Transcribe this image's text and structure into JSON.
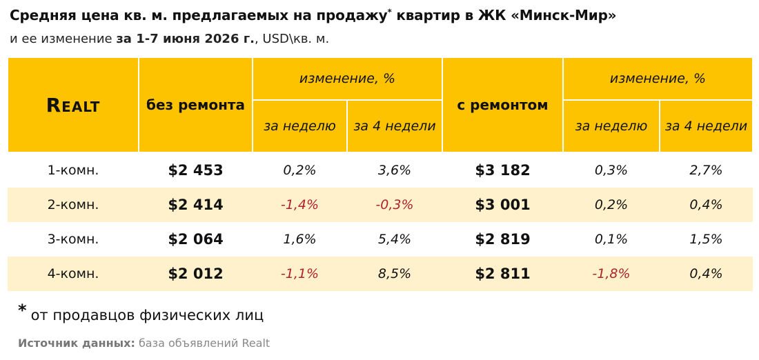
{
  "title": {
    "text": "Средняя цена кв. м. предлагаемых на продажу",
    "star": "*",
    "text2": "квартир в ЖК «Минск-Мир»"
  },
  "subtitle": {
    "text": "и ее изменение",
    "period": "за 1-7 июня 2026 г.",
    "text2": ", USD\\кв. м."
  },
  "table": {
    "logo": "Realt",
    "headers": {
      "no_repair": "без ремонта",
      "change1": "изменение, %",
      "with_repair": "с ремонтом",
      "change2": "изменение, %",
      "week1": "за неделю",
      "weeks1": "за 4 недели",
      "week2": "за неделю",
      "weeks2": "за 4 недели"
    },
    "rows": [
      [
        "1-комн.",
        "$2 453",
        "0,2%",
        "3,6%",
        "$3 182",
        "0,3%",
        "2,7%"
      ],
      [
        "2-комн.",
        "$2 414",
        "-1,4%",
        "-0,3%",
        "$3 001",
        "0,2%",
        "0,4%"
      ],
      [
        "3-комн.",
        "$2 064",
        "1,6%",
        "5,4%",
        "$2 819",
        "0,1%",
        "1,5%"
      ],
      [
        "4-комн.",
        "$2 012",
        "-1,1%",
        "8,5%",
        "$2 811",
        "-1,8%",
        "0,4%"
      ]
    ]
  },
  "footnote": {
    "star": "*",
    "text": "от продавцов физических лиц"
  },
  "source": {
    "label": "Источник данных:",
    "text": "база объявлений Realt"
  }
}
